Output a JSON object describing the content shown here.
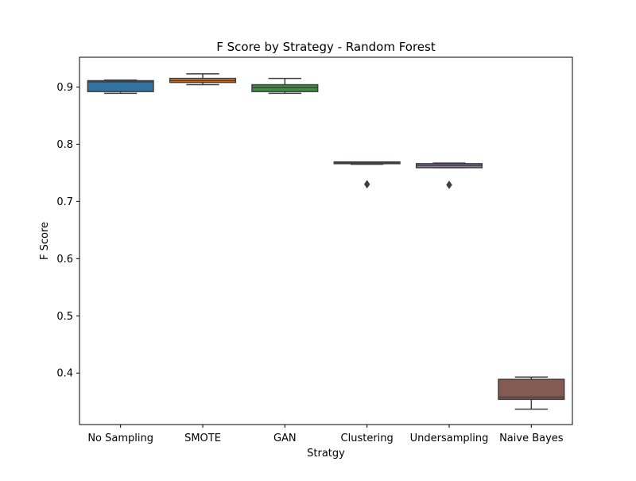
{
  "chart_data": {
    "type": "box",
    "title": "F Score by Strategy - Random Forest",
    "xlabel": "Stratgy",
    "ylabel": "F Score",
    "ylim": [
      0.31,
      0.952
    ],
    "yticks": [
      "0.4",
      "0.5",
      "0.6",
      "0.7",
      "0.8",
      "0.9"
    ],
    "categories": [
      "No Sampling",
      "SMOTE",
      "GAN",
      "Clustering",
      "Undersampling",
      "Naive Bayes"
    ],
    "grid": false,
    "series": [
      {
        "category": "No Sampling",
        "color": "#3274a1",
        "whisker_low": 0.889,
        "q1": 0.892,
        "median": 0.909,
        "q3": 0.911,
        "whisker_high": 0.912,
        "outliers": []
      },
      {
        "category": "SMOTE",
        "color": "#e1812c",
        "whisker_low": 0.904,
        "q1": 0.908,
        "median": 0.911,
        "q3": 0.915,
        "whisker_high": 0.923,
        "outliers": []
      },
      {
        "category": "GAN",
        "color": "#3a923a",
        "whisker_low": 0.889,
        "q1": 0.892,
        "median": 0.899,
        "q3": 0.904,
        "whisker_high": 0.915,
        "outliers": []
      },
      {
        "category": "Clustering",
        "color": "#c03d3e",
        "whisker_low": 0.765,
        "q1": 0.766,
        "median": 0.767,
        "q3": 0.769,
        "whisker_high": 0.769,
        "outliers": [
          0.73
        ]
      },
      {
        "category": "Undersampling",
        "color": "#9372b2",
        "whisker_low": 0.759,
        "q1": 0.759,
        "median": 0.763,
        "q3": 0.766,
        "whisker_high": 0.767,
        "outliers": [
          0.729
        ]
      },
      {
        "category": "Naive Bayes",
        "color": "#845b53",
        "whisker_low": 0.337,
        "q1": 0.354,
        "median": 0.358,
        "q3": 0.389,
        "whisker_high": 0.393,
        "outliers": []
      }
    ]
  }
}
